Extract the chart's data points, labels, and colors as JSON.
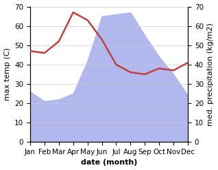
{
  "months": [
    "Jan",
    "Feb",
    "Mar",
    "Apr",
    "May",
    "Jun",
    "Jul",
    "Aug",
    "Sep",
    "Oct",
    "Nov",
    "Dec"
  ],
  "temperature": [
    47,
    46,
    52,
    67,
    63,
    53,
    40,
    36,
    35,
    38,
    37,
    41
  ],
  "precipitation": [
    26,
    21,
    22,
    25,
    42,
    65,
    66,
    67,
    55,
    44,
    35,
    24
  ],
  "temp_color": "#c04040",
  "precip_color": "#b0b8ee",
  "temp_ylim": [
    0,
    70
  ],
  "precip_ylim": [
    0,
    70
  ],
  "xlabel": "date (month)",
  "ylabel_left": "max temp (C)",
  "ylabel_right": "med. precipitation (kg/m2)",
  "label_fontsize": 8,
  "tick_fontsize": 7.5
}
